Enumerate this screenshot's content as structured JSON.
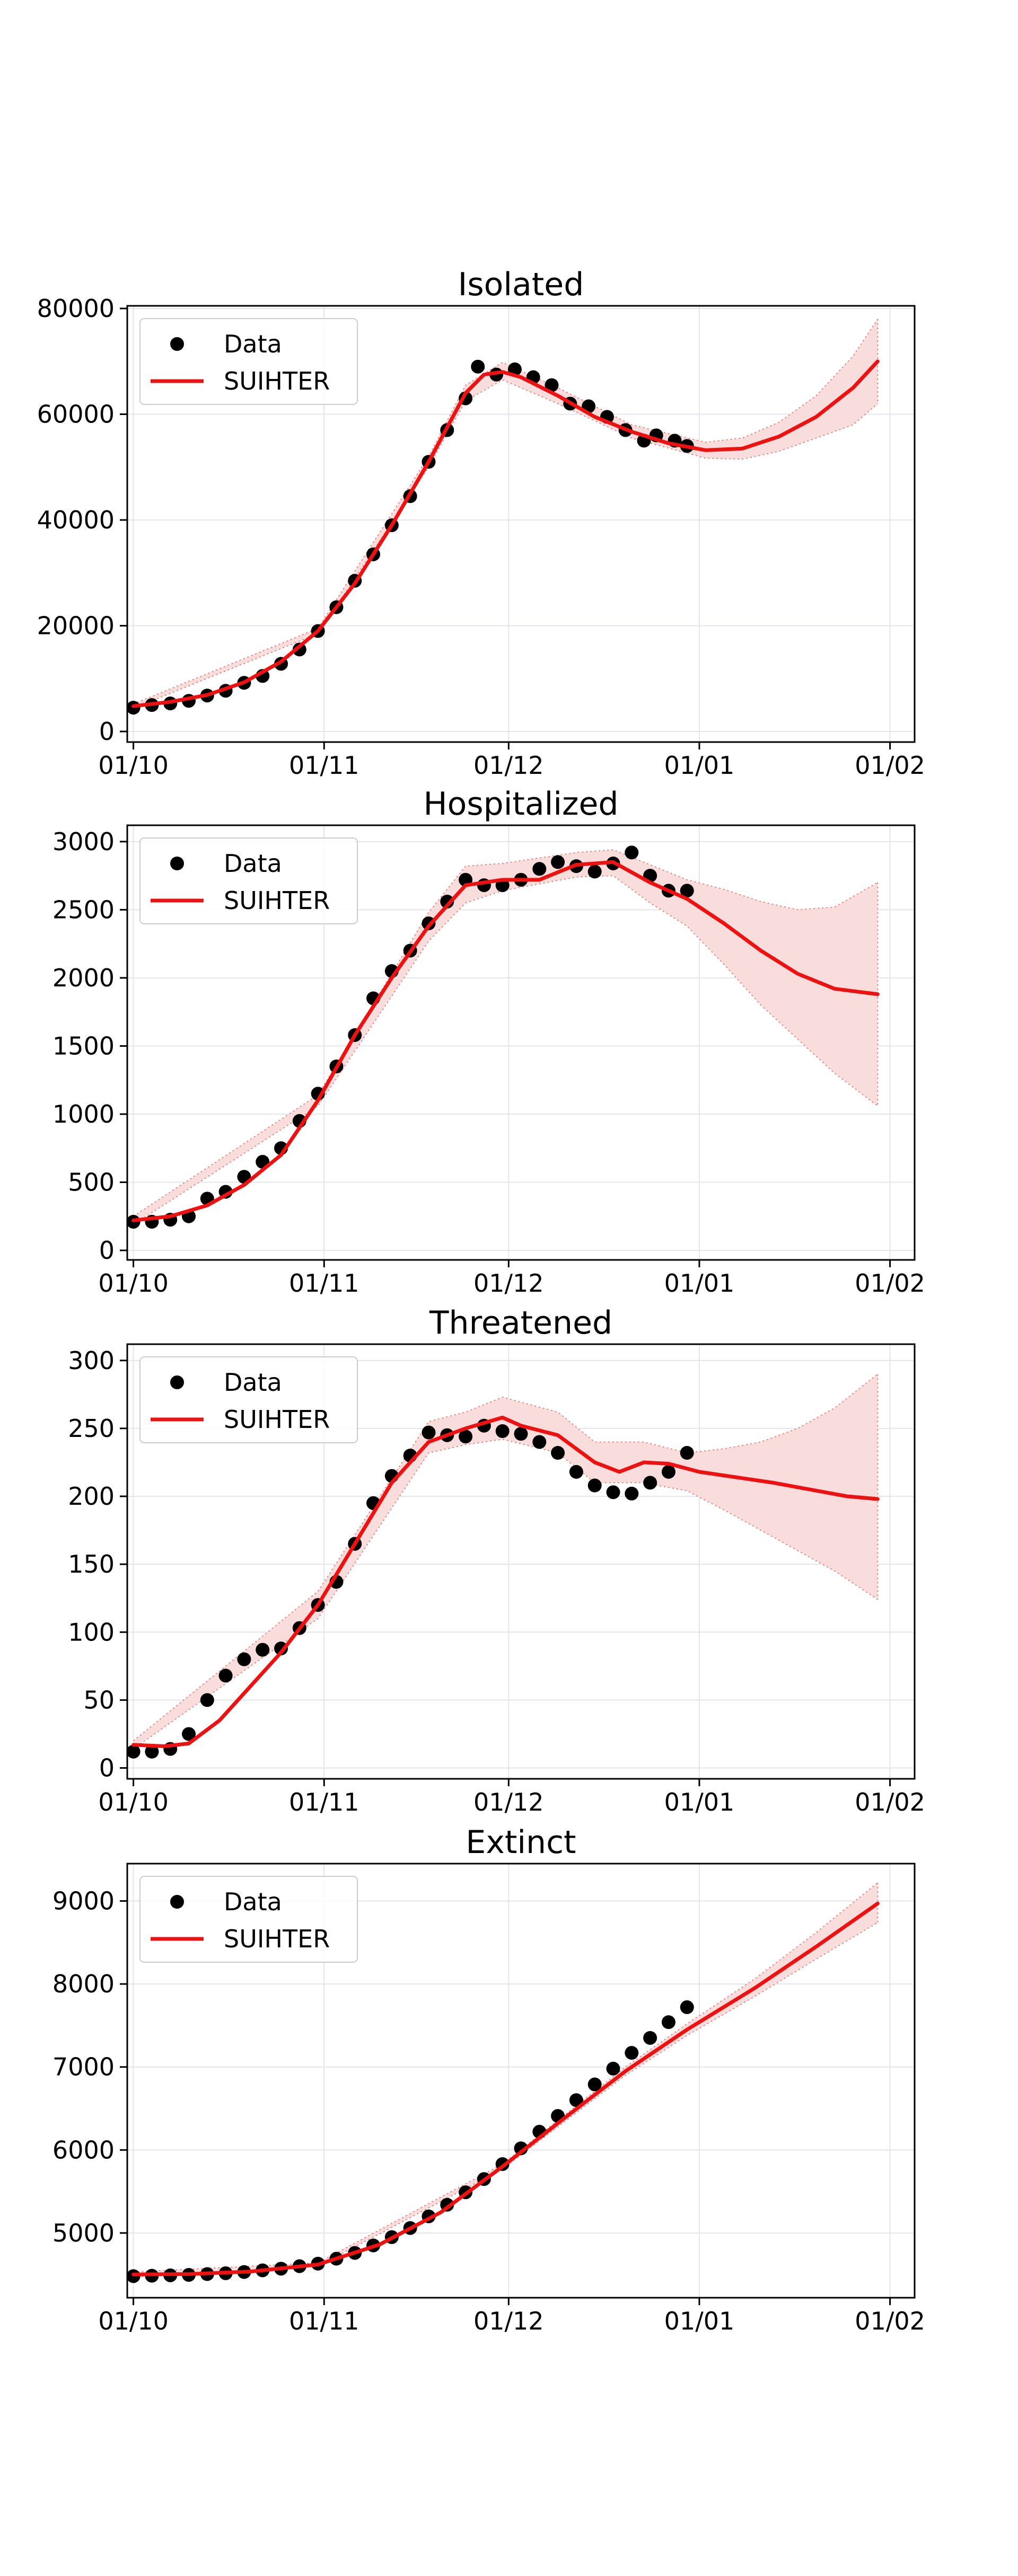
{
  "chart_data": [
    {
      "type": "line",
      "title": "Isolated",
      "xlabel": "",
      "ylabel": "",
      "x_ticks": [
        "01/10",
        "01/11",
        "01/12",
        "01/01",
        "01/02"
      ],
      "y_ticks": [
        0,
        20000,
        40000,
        60000,
        80000
      ],
      "ylim": [
        -2000,
        80500
      ],
      "legend": {
        "placement": "upper-left",
        "entries": [
          "Data",
          "SUIHTER"
        ]
      },
      "grid": true,
      "colors": {
        "data": "#000000",
        "model": "#ee1111",
        "band": "#f9dcdc"
      },
      "series": [
        {
          "name": "Data",
          "kind": "points",
          "x": [
            "01/10",
            "04/10",
            "07/10",
            "10/10",
            "13/10",
            "16/10",
            "19/10",
            "22/10",
            "25/10",
            "28/10",
            "31/10",
            "03/11",
            "06/11",
            "09/11",
            "12/11",
            "15/11",
            "18/11",
            "21/11",
            "24/11",
            "26/11",
            "29/11",
            "02/12",
            "05/12",
            "08/12",
            "11/12",
            "14/12",
            "17/12",
            "20/12",
            "23/12",
            "25/12",
            "28/12",
            "30/12"
          ],
          "values": [
            4500,
            5000,
            5300,
            5800,
            6800,
            7700,
            9200,
            10500,
            12800,
            15500,
            19000,
            23500,
            28500,
            33500,
            39000,
            44500,
            51000,
            57000,
            63000,
            69000,
            67500,
            68500,
            67000,
            65500,
            62000,
            61500,
            59500,
            57000,
            55000,
            56000,
            55000,
            54000
          ]
        },
        {
          "name": "SUIHTER",
          "kind": "line",
          "x": [
            "01/10",
            "07/10",
            "13/10",
            "19/10",
            "25/10",
            "31/10",
            "06/11",
            "12/11",
            "18/11",
            "24/11",
            "27/11",
            "30/11",
            "03/12",
            "09/12",
            "15/12",
            "21/12",
            "27/12",
            "02/01",
            "08/01",
            "14/01",
            "20/01",
            "26/01",
            "30/01"
          ],
          "values": [
            4800,
            5600,
            6900,
            9300,
            13200,
            19000,
            28000,
            39000,
            51000,
            64000,
            67500,
            68000,
            67000,
            63500,
            59500,
            56700,
            54500,
            53200,
            53500,
            55800,
            59500,
            65000,
            70000
          ]
        },
        {
          "name": "band",
          "kind": "band",
          "x": [
            "01/10",
            "31/10",
            "18/11",
            "24/11",
            "30/11",
            "09/12",
            "21/12",
            "02/01",
            "08/01",
            "14/01",
            "20/01",
            "26/01",
            "30/01"
          ],
          "lower": [
            4400,
            18500,
            50000,
            62500,
            66500,
            62000,
            55500,
            51700,
            51500,
            53000,
            55500,
            58000,
            62000
          ],
          "upper": [
            5200,
            19500,
            52000,
            65500,
            69800,
            65000,
            58000,
            54700,
            55500,
            58500,
            63500,
            71000,
            78000
          ]
        }
      ]
    },
    {
      "type": "line",
      "title": "Hospitalized",
      "xlabel": "",
      "ylabel": "",
      "x_ticks": [
        "01/10",
        "01/11",
        "01/12",
        "01/01",
        "01/02"
      ],
      "y_ticks": [
        0,
        500,
        1000,
        1500,
        2000,
        2500,
        3000
      ],
      "ylim": [
        -70,
        3120
      ],
      "legend": {
        "placement": "upper-left",
        "entries": [
          "Data",
          "SUIHTER"
        ]
      },
      "grid": true,
      "colors": {
        "data": "#000000",
        "model": "#ee1111",
        "band": "#f9dcdc"
      },
      "series": [
        {
          "name": "Data",
          "kind": "points",
          "x": [
            "01/10",
            "04/10",
            "07/10",
            "10/10",
            "13/10",
            "16/10",
            "19/10",
            "22/10",
            "25/10",
            "28/10",
            "31/10",
            "03/11",
            "06/11",
            "09/11",
            "12/11",
            "15/11",
            "18/11",
            "21/11",
            "24/11",
            "27/11",
            "30/11",
            "03/12",
            "06/12",
            "09/12",
            "12/12",
            "15/12",
            "18/12",
            "21/12",
            "24/12",
            "27/12",
            "30/12"
          ],
          "values": [
            210,
            210,
            225,
            250,
            380,
            430,
            540,
            650,
            750,
            950,
            1150,
            1350,
            1580,
            1850,
            2050,
            2200,
            2400,
            2560,
            2720,
            2680,
            2680,
            2720,
            2800,
            2850,
            2820,
            2780,
            2840,
            2920,
            2750,
            2640,
            2640
          ]
        },
        {
          "name": "SUIHTER",
          "kind": "line",
          "x": [
            "01/10",
            "07/10",
            "13/10",
            "19/10",
            "25/10",
            "31/10",
            "06/11",
            "12/11",
            "18/11",
            "24/11",
            "30/11",
            "06/12",
            "12/12",
            "18/12",
            "24/12",
            "30/12",
            "05/01",
            "11/01",
            "17/01",
            "23/01",
            "30/01"
          ],
          "values": [
            220,
            250,
            330,
            480,
            700,
            1100,
            1580,
            2000,
            2380,
            2680,
            2720,
            2720,
            2830,
            2850,
            2700,
            2580,
            2400,
            2200,
            2030,
            1920,
            1880
          ]
        },
        {
          "name": "band",
          "kind": "band",
          "x": [
            "01/10",
            "31/10",
            "18/11",
            "24/11",
            "30/11",
            "12/12",
            "18/12",
            "24/12",
            "30/12",
            "05/01",
            "11/01",
            "17/01",
            "23/01",
            "30/01"
          ],
          "lower": [
            190,
            1060,
            2270,
            2550,
            2640,
            2740,
            2750,
            2550,
            2380,
            2100,
            1800,
            1550,
            1300,
            1060
          ],
          "upper": [
            250,
            1140,
            2480,
            2820,
            2840,
            2920,
            2940,
            2830,
            2720,
            2650,
            2560,
            2500,
            2520,
            2700
          ]
        }
      ]
    },
    {
      "type": "line",
      "title": "Threatened",
      "xlabel": "",
      "ylabel": "",
      "x_ticks": [
        "01/10",
        "01/11",
        "01/12",
        "01/01",
        "01/02"
      ],
      "y_ticks": [
        0,
        50,
        100,
        150,
        200,
        250,
        300
      ],
      "ylim": [
        -8,
        312
      ],
      "legend": {
        "placement": "upper-left",
        "entries": [
          "Data",
          "SUIHTER"
        ]
      },
      "grid": true,
      "colors": {
        "data": "#000000",
        "model": "#ee1111",
        "band": "#f9dcdc"
      },
      "series": [
        {
          "name": "Data",
          "kind": "points",
          "x": [
            "01/10",
            "04/10",
            "07/10",
            "10/10",
            "13/10",
            "16/10",
            "19/10",
            "22/10",
            "25/10",
            "28/10",
            "31/10",
            "03/11",
            "06/11",
            "09/11",
            "12/11",
            "15/11",
            "18/11",
            "21/11",
            "24/11",
            "27/11",
            "30/11",
            "03/12",
            "06/12",
            "09/12",
            "12/12",
            "15/12",
            "18/12",
            "21/12",
            "24/12",
            "27/12",
            "30/12"
          ],
          "values": [
            12,
            12,
            14,
            25,
            50,
            68,
            80,
            87,
            88,
            103,
            120,
            137,
            165,
            195,
            215,
            230,
            247,
            245,
            244,
            252,
            248,
            246,
            240,
            232,
            218,
            208,
            203,
            202,
            210,
            218,
            232
          ]
        },
        {
          "name": "SUIHTER",
          "kind": "line",
          "x": [
            "01/10",
            "06/10",
            "10/10",
            "15/10",
            "20/10",
            "25/10",
            "31/10",
            "06/11",
            "12/11",
            "18/11",
            "24/11",
            "30/11",
            "03/12",
            "09/12",
            "15/12",
            "19/12",
            "23/12",
            "27/12",
            "01/01",
            "07/01",
            "13/01",
            "19/01",
            "25/01",
            "30/01"
          ],
          "values": [
            17,
            16,
            18,
            35,
            60,
            85,
            120,
            165,
            210,
            240,
            250,
            258,
            252,
            245,
            225,
            218,
            225,
            224,
            218,
            214,
            210,
            205,
            200,
            198
          ]
        },
        {
          "name": "band",
          "kind": "band",
          "x": [
            "01/10",
            "31/10",
            "18/11",
            "24/11",
            "30/11",
            "09/12",
            "15/12",
            "23/12",
            "30/12",
            "05/01",
            "11/01",
            "17/01",
            "23/01",
            "30/01"
          ],
          "lower": [
            14,
            110,
            232,
            238,
            242,
            232,
            210,
            210,
            204,
            190,
            175,
            160,
            145,
            124
          ],
          "upper": [
            20,
            130,
            255,
            262,
            273,
            262,
            240,
            240,
            232,
            235,
            240,
            250,
            265,
            290
          ]
        }
      ]
    },
    {
      "type": "line",
      "title": "Extinct",
      "xlabel": "",
      "ylabel": "",
      "x_ticks": [
        "01/10",
        "01/11",
        "01/12",
        "01/01",
        "01/02"
      ],
      "y_ticks": [
        5000,
        6000,
        7000,
        8000,
        9000
      ],
      "ylim": [
        4220,
        9450
      ],
      "legend": {
        "placement": "upper-left",
        "entries": [
          "Data",
          "SUIHTER"
        ]
      },
      "grid": true,
      "colors": {
        "data": "#000000",
        "model": "#ee1111",
        "band": "#f9dcdc"
      },
      "series": [
        {
          "name": "Data",
          "kind": "points",
          "x": [
            "01/10",
            "04/10",
            "07/10",
            "10/10",
            "13/10",
            "16/10",
            "19/10",
            "22/10",
            "25/10",
            "28/10",
            "31/10",
            "03/11",
            "06/11",
            "09/11",
            "12/11",
            "15/11",
            "18/11",
            "21/11",
            "24/11",
            "27/11",
            "30/11",
            "03/12",
            "06/12",
            "09/12",
            "12/12",
            "15/12",
            "18/12",
            "21/12",
            "24/12",
            "27/12",
            "30/12"
          ],
          "values": [
            4480,
            4485,
            4490,
            4495,
            4505,
            4515,
            4530,
            4550,
            4570,
            4600,
            4630,
            4690,
            4760,
            4850,
            4950,
            5060,
            5200,
            5340,
            5490,
            5650,
            5830,
            6020,
            6220,
            6410,
            6600,
            6790,
            6980,
            7170,
            7350,
            7540,
            7720
          ]
        },
        {
          "name": "SUIHTER",
          "kind": "line",
          "x": [
            "01/10",
            "10/10",
            "20/10",
            "31/10",
            "10/11",
            "20/11",
            "30/11",
            "10/12",
            "20/12",
            "30/12",
            "10/01",
            "20/01",
            "30/01"
          ],
          "values": [
            4500,
            4505,
            4535,
            4620,
            4860,
            5250,
            5800,
            6380,
            6950,
            7450,
            7950,
            8450,
            8970
          ]
        },
        {
          "name": "band",
          "kind": "band",
          "x": [
            "01/10",
            "31/10",
            "30/11",
            "20/12",
            "30/12",
            "10/01",
            "20/01",
            "30/01"
          ],
          "lower": [
            4470,
            4600,
            5770,
            6900,
            7380,
            7850,
            8300,
            8740
          ],
          "upper": [
            4530,
            4640,
            5830,
            7000,
            7520,
            8060,
            8620,
            9220
          ]
        }
      ]
    }
  ]
}
